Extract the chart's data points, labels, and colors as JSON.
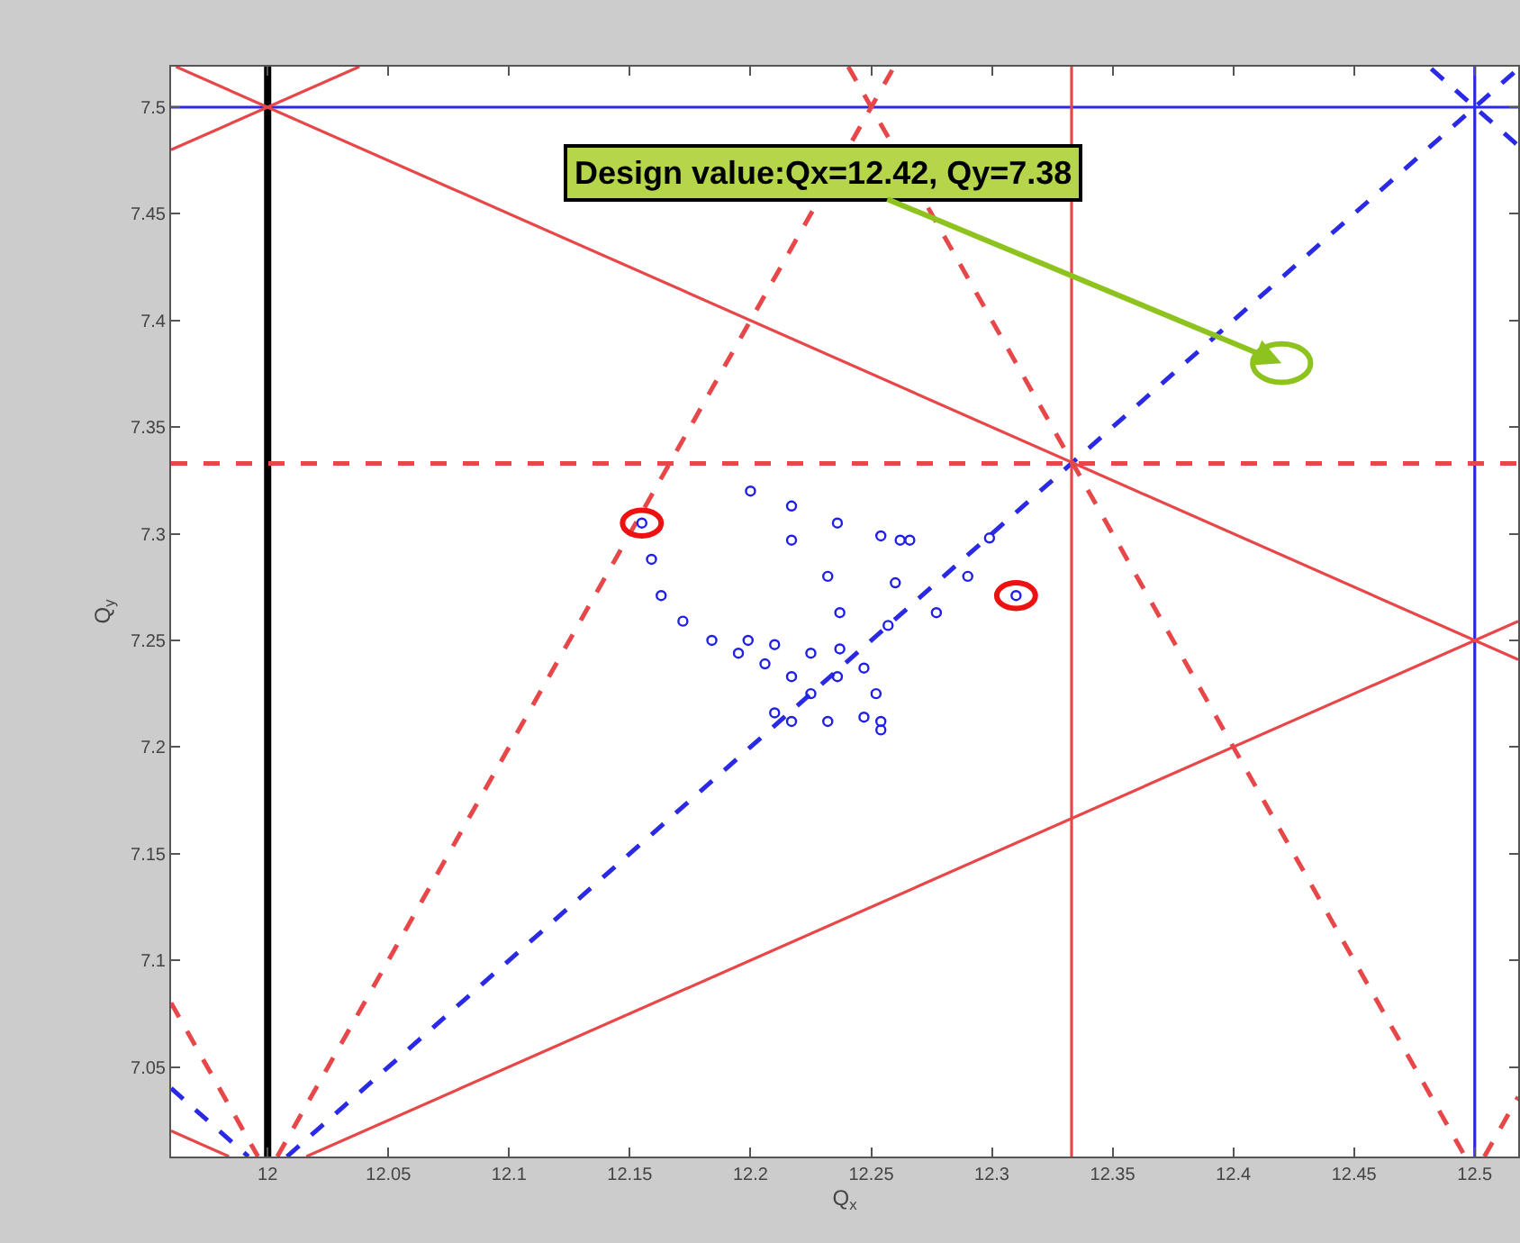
{
  "chart_data": {
    "type": "line",
    "xlabel": "Q$_{x}$",
    "ylabel": "Q$_{y}$",
    "xlim": [
      11.96,
      12.518
    ],
    "ylim": [
      7.008,
      7.519
    ],
    "xticks": [
      {
        "value": 12,
        "label": "12"
      },
      12.05,
      12.1,
      12.15,
      12.2,
      12.25,
      12.3,
      12.35,
      12.4,
      12.45,
      {
        "value": 12.5,
        "label": "12.5"
      }
    ],
    "yticks": [
      7.05,
      7.1,
      7.15,
      7.2,
      7.25,
      7.3,
      7.35,
      7.4,
      7.45,
      {
        "value": 7.5,
        "label": "7.5"
      }
    ],
    "marker": "none",
    "annotations": [
      {
        "text": "Design value:Qx=12.42, Qy=7.38",
        "x": 12.42,
        "y": 7.38
      }
    ],
    "series": [
      {
        "color": "#000000",
        "line_style": "solid",
        "x": [
          12,
          12
        ],
        "values": [
          7.008,
          7.519
        ]
      },
      {
        "color": "#2a2ae6",
        "line_style": "solid",
        "x": [
          12.5,
          12.5
        ],
        "values": [
          7.008,
          7.519
        ]
      },
      {
        "color": "#2a2ae6",
        "line_style": "solid",
        "x": [
          11.96,
          12.518
        ],
        "values": [
          7.5,
          7.5
        ]
      },
      {
        "color": "#2a2ae6",
        "line_style": "dashed",
        "x": [
          12.008,
          12.518
        ],
        "values": [
          7.008,
          7.518
        ]
      },
      {
        "color": "#2a2ae6",
        "line_style": "dashed",
        "x": [
          11.96,
          11.992
        ],
        "values": [
          7.04,
          7.008
        ]
      },
      {
        "color": "#2a2ae6",
        "line_style": "dashed",
        "x": [
          12.482,
          12.518
        ],
        "values": [
          7.518,
          7.482
        ]
      },
      {
        "color": "#e8474a",
        "line_style": "dashed",
        "x": [
          11.96,
          12.518
        ],
        "values": [
          7.333,
          7.333
        ]
      },
      {
        "color": "#e8474a",
        "line_style": "solid",
        "x": [
          12.333,
          12.333
        ],
        "values": [
          7.008,
          7.519
        ]
      },
      {
        "color": "#e8474a",
        "line_style": "solid",
        "x": [
          11.962,
          12.518
        ],
        "values": [
          7.519,
          7.241
        ]
      },
      {
        "color": "#e8474a",
        "line_style": "solid",
        "x": [
          11.96,
          12.038
        ],
        "values": [
          7.48,
          7.519
        ]
      },
      {
        "color": "#e8474a",
        "line_style": "solid",
        "x": [
          12.016,
          12.518
        ],
        "values": [
          7.008,
          7.259
        ]
      },
      {
        "color": "#e8474a",
        "line_style": "solid",
        "x": [
          11.96,
          11.984
        ],
        "values": [
          7.02,
          7.008
        ]
      },
      {
        "color": "#e8474a",
        "line_style": "dashed",
        "x": [
          12.004,
          12.2595
        ],
        "values": [
          7.008,
          7.519
        ]
      },
      {
        "color": "#e8474a",
        "line_style": "dashed",
        "x": [
          12.2405,
          12.496
        ],
        "values": [
          7.519,
          7.008
        ]
      },
      {
        "color": "#e8474a",
        "line_style": "dashed",
        "x": [
          12.504,
          12.518
        ],
        "values": [
          7.008,
          7.036
        ]
      },
      {
        "color": "#e8474a",
        "line_style": "dashed",
        "x": [
          11.96,
          11.996
        ],
        "values": [
          7.08,
          7.008
        ]
      },
      {
        "type": "scatter",
        "color": "#1f1fe8",
        "marker": "circle",
        "x": [
          12.155,
          12.159,
          12.163,
          12.172,
          12.184,
          12.195,
          12.206,
          12.217,
          12.225,
          12.21,
          12.217,
          12.232,
          12.247,
          12.254,
          12.2,
          12.217,
          12.236,
          12.254,
          12.266,
          12.262,
          12.26,
          12.257,
          12.217,
          12.232,
          12.237,
          12.237,
          12.236,
          12.299,
          12.29,
          12.277,
          12.199,
          12.21,
          12.225,
          12.247,
          12.252,
          12.254,
          12.31
        ],
        "values": [
          7.305,
          7.288,
          7.271,
          7.259,
          7.25,
          7.244,
          7.239,
          7.233,
          7.225,
          7.216,
          7.212,
          7.212,
          7.214,
          7.208,
          7.32,
          7.313,
          7.305,
          7.299,
          7.297,
          7.297,
          7.277,
          7.257,
          7.297,
          7.28,
          7.263,
          7.246,
          7.233,
          7.298,
          7.28,
          7.263,
          7.25,
          7.248,
          7.244,
          7.237,
          7.225,
          7.212,
          7.271
        ]
      }
    ]
  }
}
